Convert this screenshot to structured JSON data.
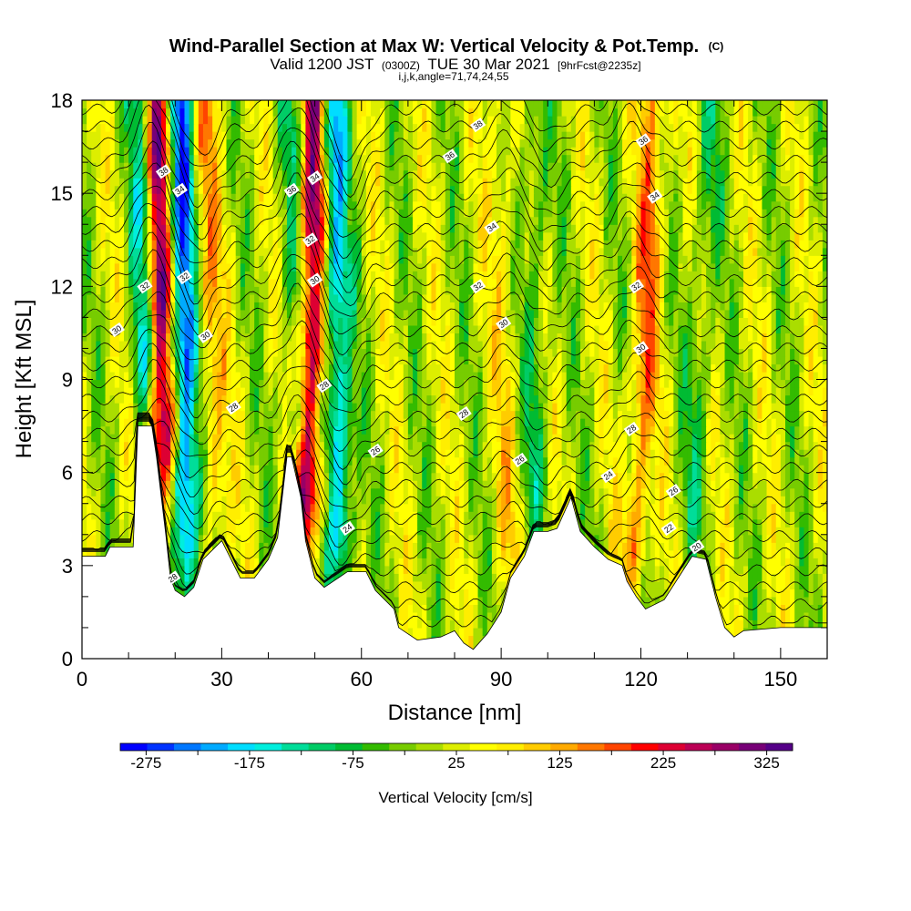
{
  "chart_data": {
    "type": "heatmap",
    "title": "Wind-Parallel Section at Max W: Vertical Velocity & Pot.Temp.",
    "title_mark": "(C)",
    "subtitle_parts": [
      "Valid 1200 JST",
      "(0300Z)",
      "TUE 30 Mar 2021",
      "[9hrFcst@2235z]"
    ],
    "subtitle2": "i,j,k,angle=71,74,24,55",
    "xlabel": "Distance [nm]",
    "ylabel": "Height [Kft MSL]",
    "xlim": [
      0,
      160
    ],
    "ylim": [
      0,
      18
    ],
    "x_ticks": [
      0,
      30,
      60,
      90,
      120,
      150
    ],
    "y_ticks": [
      0,
      3,
      6,
      9,
      12,
      15,
      18
    ],
    "colorbar": {
      "label": "Vertical Velocity [cm/s]",
      "range": [
        -300,
        350
      ],
      "tick_labels": [
        -275,
        -175,
        -75,
        25,
        125,
        225,
        325
      ],
      "colors": [
        "#0000ff",
        "#0033ff",
        "#0077ff",
        "#00aaff",
        "#00ddff",
        "#00eedd",
        "#00dd99",
        "#00cc66",
        "#00bb33",
        "#33bb00",
        "#77cc00",
        "#aadd00",
        "#ddee00",
        "#ffff00",
        "#ffee00",
        "#ffcc00",
        "#ffaa00",
        "#ff7700",
        "#ff4400",
        "#ff0000",
        "#dd0033",
        "#bb0055",
        "#990066",
        "#770077",
        "#550088"
      ]
    },
    "updraft_bands": [
      {
        "x_bottom": 18,
        "x_top": 16,
        "strength": 300
      },
      {
        "x_bottom": 48,
        "x_top": 50,
        "strength": 270
      },
      {
        "x_bottom": 118,
        "x_top": 123,
        "strength": 140
      },
      {
        "x_bottom": 30,
        "x_top": 26,
        "strength": 110
      },
      {
        "x_bottom": 92,
        "x_top": 90,
        "strength": 60
      }
    ],
    "downdraft_bands": [
      {
        "x_bottom": 23,
        "x_top": 21,
        "strength": -270
      },
      {
        "x_bottom": 14,
        "x_top": 13,
        "strength": -160
      },
      {
        "x_bottom": 56,
        "x_top": 54,
        "strength": -210
      },
      {
        "x_bottom": 46,
        "x_top": 45,
        "strength": -80
      },
      {
        "x_bottom": 98,
        "x_top": 97,
        "strength": -80
      },
      {
        "x_bottom": 130,
        "x_top": 135,
        "strength": -70
      }
    ],
    "terrain": [
      [
        0,
        3.3
      ],
      [
        5,
        3.3
      ],
      [
        6,
        3.6
      ],
      [
        11,
        3.6
      ],
      [
        12,
        7.5
      ],
      [
        15,
        7.5
      ],
      [
        16,
        6.5
      ],
      [
        18,
        4
      ],
      [
        19,
        2.6
      ],
      [
        20,
        2.2
      ],
      [
        22,
        2.0
      ],
      [
        24,
        2.3
      ],
      [
        26,
        3.2
      ],
      [
        28,
        3.5
      ],
      [
        30,
        3.8
      ],
      [
        32,
        3.2
      ],
      [
        34,
        2.6
      ],
      [
        37,
        2.6
      ],
      [
        40,
        3.2
      ],
      [
        42,
        3.9
      ],
      [
        43,
        5.2
      ],
      [
        44,
        6.5
      ],
      [
        45,
        6.5
      ],
      [
        47,
        5.2
      ],
      [
        48,
        3.8
      ],
      [
        50,
        2.6
      ],
      [
        52,
        2.3
      ],
      [
        55,
        2.6
      ],
      [
        57,
        2.8
      ],
      [
        61,
        2.8
      ],
      [
        63,
        2.2
      ],
      [
        67,
        1.6
      ],
      [
        68,
        1.0
      ],
      [
        70,
        0.8
      ],
      [
        72,
        0.6
      ],
      [
        77,
        0.7
      ],
      [
        80,
        0.9
      ],
      [
        82,
        0.5
      ],
      [
        84,
        0.3
      ],
      [
        87,
        0.8
      ],
      [
        90,
        1.5
      ],
      [
        92,
        2.6
      ],
      [
        95,
        3.3
      ],
      [
        97,
        4.1
      ],
      [
        100,
        4.1
      ],
      [
        102,
        4.2
      ],
      [
        105,
        5.2
      ],
      [
        107,
        4.1
      ],
      [
        110,
        3.6
      ],
      [
        113,
        3.2
      ],
      [
        116,
        3.0
      ],
      [
        117,
        2.5
      ],
      [
        119,
        2.0
      ],
      [
        121,
        1.6
      ],
      [
        125,
        1.9
      ],
      [
        128,
        2.6
      ],
      [
        131,
        3.3
      ],
      [
        134,
        3.2
      ],
      [
        136,
        2.0
      ],
      [
        138,
        1.0
      ],
      [
        140,
        0.7
      ],
      [
        142,
        0.9
      ],
      [
        150,
        1.0
      ],
      [
        160,
        1.0
      ]
    ],
    "theta_contours": [
      20,
      22,
      24,
      26,
      28,
      30,
      32,
      34,
      36,
      38
    ],
    "contour_labels": [
      {
        "text": "38",
        "x": 17.5,
        "y": 15.7
      },
      {
        "text": "34",
        "x": 21,
        "y": 15.1
      },
      {
        "text": "32",
        "x": 22,
        "y": 12.3
      },
      {
        "text": "32",
        "x": 13.5,
        "y": 12.0
      },
      {
        "text": "30",
        "x": 7.5,
        "y": 10.6
      },
      {
        "text": "30",
        "x": 26.5,
        "y": 10.4
      },
      {
        "text": "28",
        "x": 32.5,
        "y": 8.1
      },
      {
        "text": "28",
        "x": 19.5,
        "y": 2.6
      },
      {
        "text": "36",
        "x": 45,
        "y": 15.1
      },
      {
        "text": "34",
        "x": 50,
        "y": 15.5
      },
      {
        "text": "32",
        "x": 49,
        "y": 13.5
      },
      {
        "text": "30",
        "x": 50,
        "y": 12.2
      },
      {
        "text": "28",
        "x": 52,
        "y": 8.8
      },
      {
        "text": "26",
        "x": 63,
        "y": 6.7
      },
      {
        "text": "24",
        "x": 57,
        "y": 4.2
      },
      {
        "text": "38",
        "x": 85,
        "y": 17.2
      },
      {
        "text": "36",
        "x": 79,
        "y": 16.2
      },
      {
        "text": "34",
        "x": 88,
        "y": 13.9
      },
      {
        "text": "32",
        "x": 85,
        "y": 12.0
      },
      {
        "text": "30",
        "x": 90.5,
        "y": 10.8
      },
      {
        "text": "28",
        "x": 82,
        "y": 7.9
      },
      {
        "text": "26",
        "x": 94,
        "y": 6.4
      },
      {
        "text": "36",
        "x": 120.5,
        "y": 16.7
      },
      {
        "text": "34",
        "x": 123,
        "y": 14.9
      },
      {
        "text": "32",
        "x": 119,
        "y": 12.0
      },
      {
        "text": "30",
        "x": 120,
        "y": 10.0
      },
      {
        "text": "28",
        "x": 118,
        "y": 7.4
      },
      {
        "text": "24",
        "x": 113,
        "y": 5.9
      },
      {
        "text": "26",
        "x": 127,
        "y": 5.4
      },
      {
        "text": "22",
        "x": 126,
        "y": 4.2
      },
      {
        "text": "20",
        "x": 132,
        "y": 3.6
      }
    ]
  }
}
